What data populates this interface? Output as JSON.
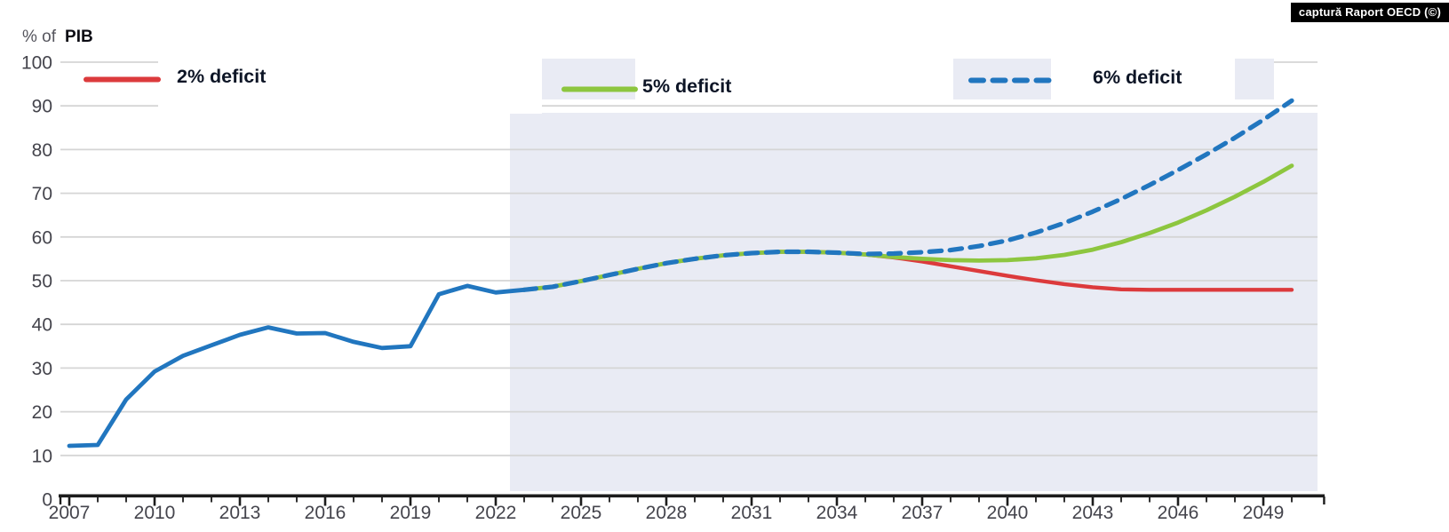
{
  "caption": {
    "text": "captură Raport OECD (©)"
  },
  "chart_data": {
    "type": "line",
    "ylabel_prefix": "% of",
    "ylabel_bold": "PIB",
    "y_axis": {
      "min": 0,
      "max": 100,
      "step": 10,
      "grid": true
    },
    "x_axis": {
      "start_year": 2007,
      "end_year": 2050,
      "minor_tick_every": 1,
      "labeled_years": [
        2007,
        2010,
        2013,
        2016,
        2019,
        2022,
        2025,
        2028,
        2031,
        2034,
        2037,
        2040,
        2043,
        2046,
        2049
      ]
    },
    "projection_region": {
      "start_year": 2023,
      "shaded": true
    },
    "legend": [
      {
        "label": "2% deficit",
        "color": "#dc3a3c",
        "style": "solid"
      },
      {
        "label": "5% deficit",
        "color": "#8dc63f",
        "style": "solid"
      },
      {
        "label": "6% deficit",
        "color": "#2176bf",
        "style": "dashed"
      }
    ],
    "series": [
      {
        "name": "",
        "color": "#2176bf",
        "style": "solid",
        "width": 4.8,
        "start_year": 2007,
        "values": [
          12.2,
          12.4,
          22.8,
          29.2,
          32.8,
          35.2,
          37.6,
          39.3,
          37.9,
          38.0,
          36.0,
          34.6,
          35.0,
          46.9,
          48.8,
          47.3,
          47.9
        ]
      },
      {
        "name": "2% deficit",
        "color": "#dc3a3c",
        "style": "solid",
        "width": 4.4,
        "start_year": 2023,
        "values": [
          47.9,
          48.6,
          49.9,
          51.3,
          52.7,
          54.0,
          55.0,
          55.8,
          56.3,
          56.6,
          56.6,
          56.4,
          56.0,
          55.3,
          54.4,
          53.3,
          52.2,
          51.1,
          50.1,
          49.2,
          48.5,
          48.0,
          47.9,
          47.9,
          47.9,
          47.9,
          47.9,
          47.9
        ]
      },
      {
        "name": "5% deficit",
        "color": "#8dc63f",
        "style": "solid",
        "width": 4.8,
        "start_year": 2023,
        "values": [
          47.9,
          48.6,
          49.9,
          51.3,
          52.7,
          54.0,
          55.0,
          55.8,
          56.3,
          56.6,
          56.6,
          56.4,
          56.0,
          55.4,
          55.0,
          54.7,
          54.6,
          54.7,
          55.1,
          55.9,
          57.1,
          58.8,
          60.9,
          63.3,
          66.1,
          69.2,
          72.6,
          76.3
        ]
      },
      {
        "name": "6% deficit",
        "color": "#2176bf",
        "style": "dashed",
        "width": 5.2,
        "start_year": 2023,
        "values": [
          47.9,
          48.6,
          49.9,
          51.3,
          52.7,
          54.0,
          55.0,
          55.8,
          56.3,
          56.6,
          56.6,
          56.4,
          56.1,
          56.2,
          56.5,
          57.0,
          57.9,
          59.2,
          61.0,
          63.2,
          65.8,
          68.7,
          71.9,
          75.3,
          78.9,
          82.7,
          86.8,
          91.2
        ]
      }
    ],
    "colors": {
      "band": "#e9ebf4",
      "gridline": "#d5d5d5",
      "axis": "#1c1c1c",
      "tick_text": "#44444c",
      "legend_text": "#0d1526"
    }
  }
}
